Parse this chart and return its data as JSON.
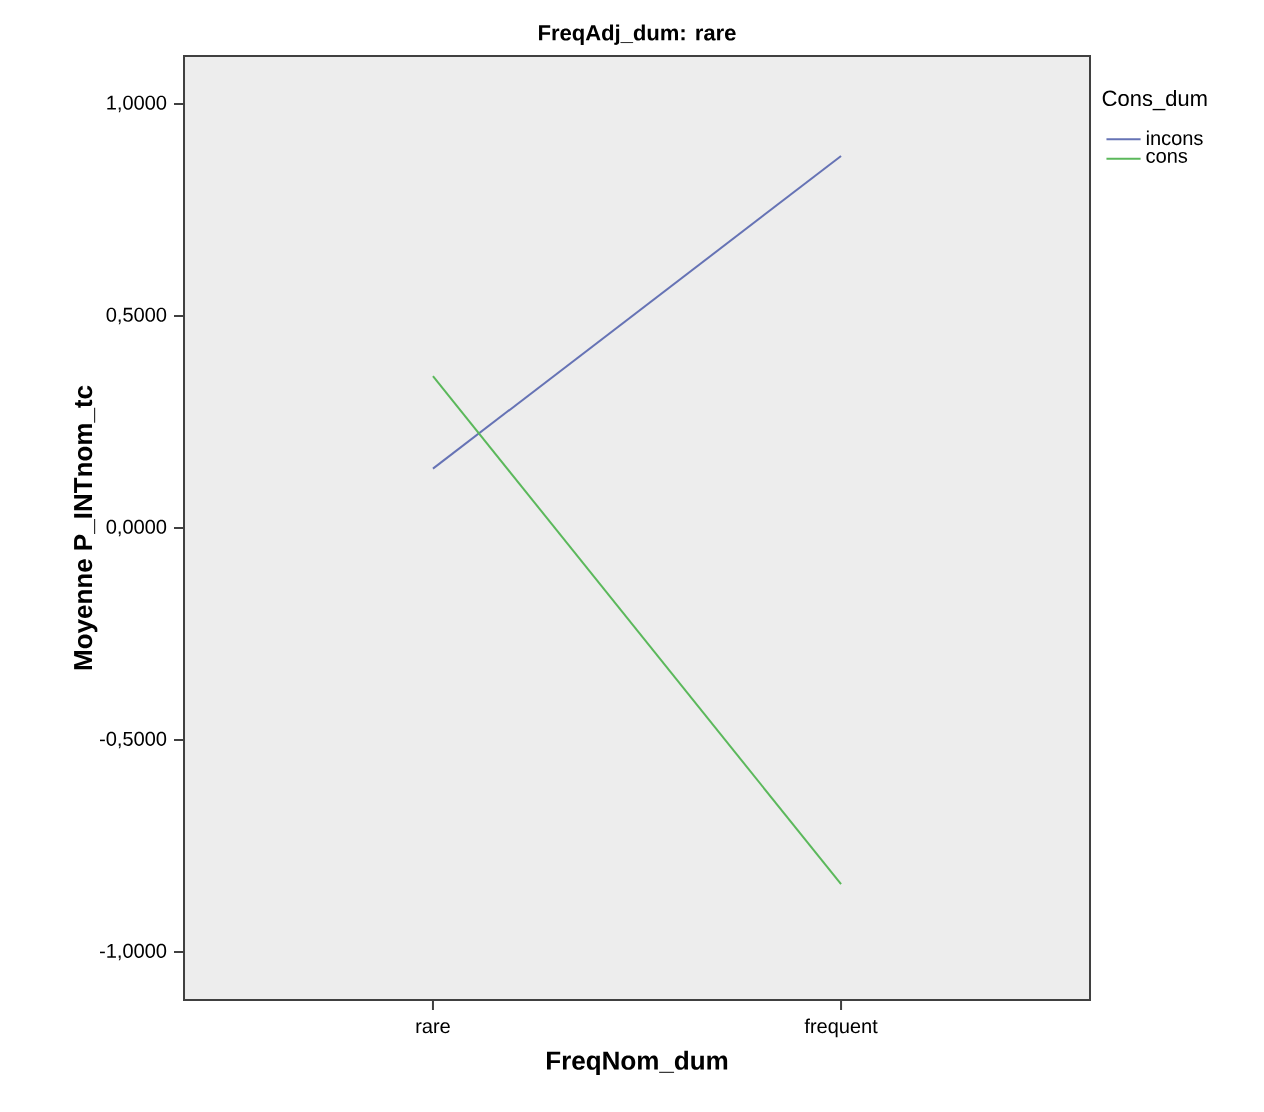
{
  "chart_data": {
    "type": "line",
    "title": "FreqAdj_dum: rare",
    "xlabel": "FreqNom_dum",
    "ylabel": "Moyenne P_INTnom_tc",
    "legend_title": "Cons_dum",
    "legend": "right",
    "categories": [
      "rare",
      "frequent"
    ],
    "series": [
      {
        "name": "incons",
        "color": "#6673b5",
        "values": [
          0.14,
          0.877
        ]
      },
      {
        "name": "cons",
        "color": "#5bb85b",
        "values": [
          0.358,
          -0.84
        ]
      }
    ],
    "ylim": [
      -1.113,
      1.113
    ],
    "yticks": [
      {
        "value": -1,
        "label": "-1,0000"
      },
      {
        "value": -0.5,
        "label": "-0,5000"
      },
      {
        "value": 0,
        "label": "0,0000"
      },
      {
        "value": 0.5,
        "label": "0,5000"
      },
      {
        "value": 1,
        "label": "1,0000"
      }
    ],
    "grid": false,
    "marker": "none",
    "line_style": "solid"
  }
}
